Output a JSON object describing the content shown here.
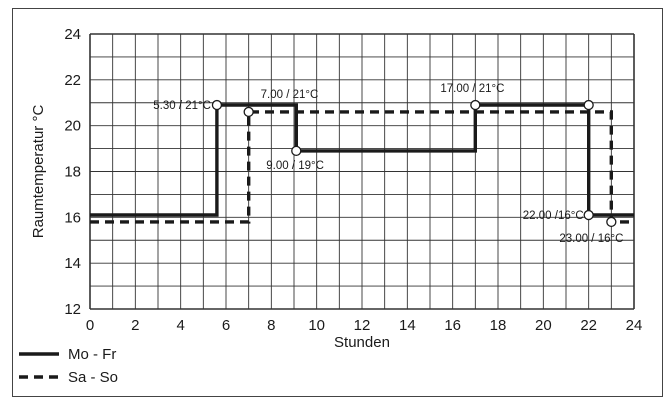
{
  "chart_data": {
    "type": "line",
    "step": true,
    "xlabel": "Stunden",
    "ylabel": "Raumtemperatur °C",
    "xlim": [
      0,
      24
    ],
    "ylim": [
      12,
      24
    ],
    "x_ticks": [
      0,
      2,
      4,
      6,
      8,
      10,
      12,
      14,
      16,
      18,
      20,
      22,
      24
    ],
    "y_ticks": [
      12,
      14,
      16,
      18,
      20,
      22,
      24
    ],
    "grid": true,
    "legend_position": "bottom-left",
    "series": [
      {
        "name": "Mo - Fr",
        "style": "solid",
        "color": "#1a1a1a",
        "points": [
          [
            0,
            16.1
          ],
          [
            5.6,
            16.1
          ],
          [
            5.6,
            20.9
          ],
          [
            9.1,
            20.9
          ],
          [
            9.1,
            18.9
          ],
          [
            17.0,
            18.9
          ],
          [
            17.0,
            20.9
          ],
          [
            22.0,
            20.9
          ],
          [
            22.0,
            16.1
          ],
          [
            24,
            16.1
          ]
        ]
      },
      {
        "name": "Sa - So",
        "style": "dashed",
        "color": "#1a1a1a",
        "points": [
          [
            0,
            15.8
          ],
          [
            7.0,
            15.8
          ],
          [
            7.0,
            20.6
          ],
          [
            23.0,
            20.6
          ],
          [
            23.0,
            15.8
          ],
          [
            24,
            15.8
          ]
        ]
      }
    ],
    "markers": [
      [
        5.6,
        20.9
      ],
      [
        7.0,
        20.6
      ],
      [
        9.1,
        18.9
      ],
      [
        17.0,
        20.9
      ],
      [
        22.0,
        20.9
      ],
      [
        22.0,
        16.1
      ],
      [
        23.0,
        15.8
      ]
    ],
    "annotations": [
      {
        "text": "5.30 / 21°C",
        "x": 5.6,
        "y": 20.9
      },
      {
        "text": "7.00 / 21°C",
        "x": 7.0,
        "y": 20.6
      },
      {
        "text": "9.00 / 19°C",
        "x": 9.1,
        "y": 18.9
      },
      {
        "text": "17.00 / 21°C",
        "x": 17.0,
        "y": 20.9
      },
      {
        "text": "22.00 /16°C",
        "x": 22.0,
        "y": 16.1
      },
      {
        "text": "23.00 / 16°C",
        "x": 23.0,
        "y": 15.8
      }
    ]
  }
}
